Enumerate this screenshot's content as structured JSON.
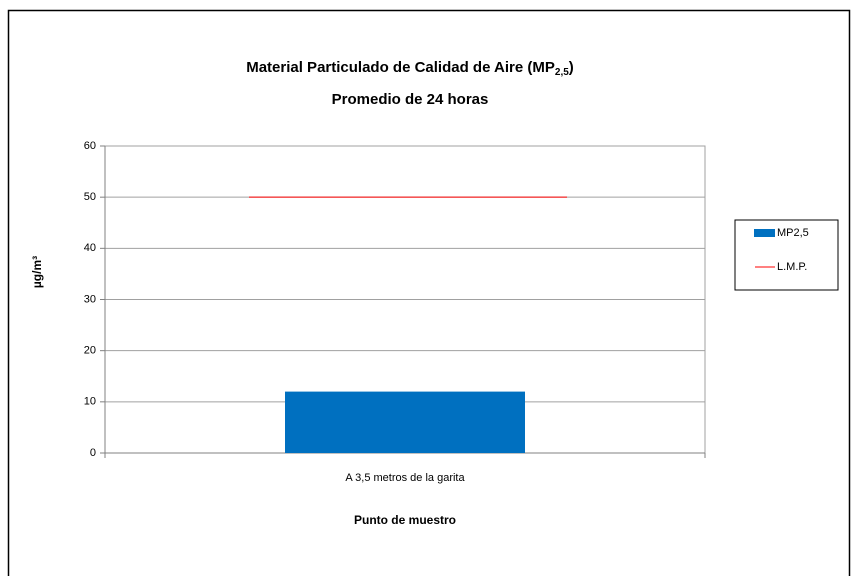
{
  "chart_data": {
    "type": "bar",
    "title": [
      "Material Particulado de Calidad de Aire (MP",
      "2,5",
      ")"
    ],
    "subtitle": "Promedio de 24 horas",
    "x_label": "Punto de muestro",
    "y_label": "µg/m³",
    "categories": [
      "A 3,5 metros de la garita"
    ],
    "series": [
      {
        "name": "MP2,5",
        "type": "bar",
        "color": "#0070c0",
        "values": [
          12
        ]
      },
      {
        "name": "L.M.P.",
        "type": "line",
        "color": "#ff0000",
        "values": [
          50
        ]
      }
    ],
    "ylim": [
      0,
      60
    ],
    "yticks": [
      0,
      10,
      20,
      30,
      40,
      50,
      60
    ],
    "grid": true,
    "legend": "right"
  }
}
